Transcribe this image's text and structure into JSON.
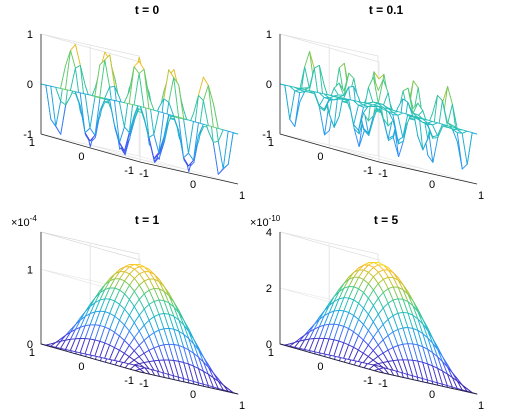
{
  "figure": {
    "colormap": [
      "#3e26a8",
      "#4747ec",
      "#3a88fd",
      "#1ea9de",
      "#26bfbc",
      "#47cb86",
      "#b4c633",
      "#f9bc2c",
      "#f9fb15"
    ]
  },
  "chart_data": [
    {
      "type": "surface",
      "title": "t = 0",
      "function": "sin(3*pi*x)*sin(3*pi*y)",
      "x": [
        -1,
        1
      ],
      "y": [
        -1,
        1
      ],
      "grid": 21,
      "zlim": [
        -1,
        1
      ],
      "z_ticks": [
        -1,
        0,
        1
      ],
      "z_tick_labels": [
        "-1",
        "0",
        "1"
      ],
      "x_ticks": [
        -1,
        0,
        1
      ],
      "x_tick_labels": [
        "-1",
        "0",
        "1"
      ],
      "y_ticks": [
        -1,
        0,
        1
      ],
      "y_tick_labels": [
        "-1",
        "0",
        "1"
      ],
      "exponent": ""
    },
    {
      "type": "surface",
      "title": "t = 0.1",
      "function": "sin(3*pi*x)*sin(3*pi*y) with rectangular plateaus at 0 (waves partially damped)",
      "x": [
        -1,
        1
      ],
      "y": [
        -1,
        1
      ],
      "grid": 21,
      "zlim": [
        -1,
        1
      ],
      "z_ticks": [
        -1,
        0,
        1
      ],
      "z_tick_labels": [
        "-1",
        "0",
        "1"
      ],
      "x_ticks": [
        -1,
        0,
        1
      ],
      "x_tick_labels": [
        "-1",
        "0",
        "1"
      ],
      "y_ticks": [
        -1,
        0,
        1
      ],
      "y_tick_labels": [
        "-1",
        "0",
        "1"
      ],
      "exponent": ""
    },
    {
      "type": "surface",
      "title": "t = 1",
      "function": "1.4e-4*cos(pi*x/2)*cos(pi*y/2)",
      "x": [
        -1,
        1
      ],
      "y": [
        -1,
        1
      ],
      "grid": 21,
      "zlim": [
        0,
        1.5
      ],
      "z_ticks": [
        0,
        1
      ],
      "z_tick_labels": [
        "0",
        "1"
      ],
      "x_ticks": [
        -1,
        0,
        1
      ],
      "x_tick_labels": [
        "-1",
        "0",
        "1"
      ],
      "y_ticks": [
        -1,
        0,
        1
      ],
      "y_tick_labels": [
        "-1",
        "0",
        "1"
      ],
      "exponent": "-4"
    },
    {
      "type": "surface",
      "title": "t = 5",
      "function": "3.8e-10*cos(pi*x/2)*cos(pi*y/2)",
      "x": [
        -1,
        1
      ],
      "y": [
        -1,
        1
      ],
      "grid": 21,
      "zlim": [
        0,
        4
      ],
      "z_ticks": [
        0,
        2,
        4
      ],
      "z_tick_labels": [
        "0",
        "2",
        "4"
      ],
      "x_ticks": [
        -1,
        0,
        1
      ],
      "x_tick_labels": [
        "-1",
        "0",
        "1"
      ],
      "y_ticks": [
        -1,
        0,
        1
      ],
      "y_tick_labels": [
        "-1",
        "0",
        "1"
      ],
      "exponent": "-10"
    }
  ]
}
